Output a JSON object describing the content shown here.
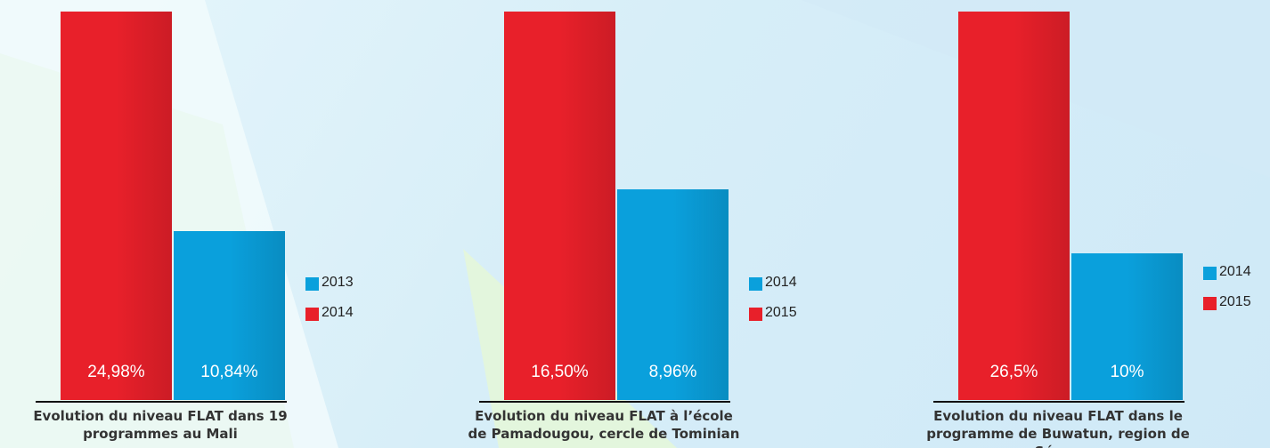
{
  "chart_data": [
    {
      "type": "bar",
      "title": "Evolution du niveau FLAT dans 19 programmes au Mali",
      "categories": [
        null
      ],
      "series": [
        {
          "name": "2013",
          "color": "#0aa0dc",
          "values": [
            10.84
          ],
          "value_labels": [
            "10,84%"
          ]
        },
        {
          "name": "2014",
          "color": "#e8202a",
          "values": [
            24.98
          ],
          "value_labels": [
            "24,98%"
          ]
        }
      ]
    },
    {
      "type": "bar",
      "title": "Evolution du niveau FLAT à l’école de Pamadougou, cercle de Tominian",
      "categories": [
        null
      ],
      "series": [
        {
          "name": "2014",
          "color": "#0aa0dc",
          "values": [
            8.96
          ],
          "value_labels": [
            "8,96%"
          ]
        },
        {
          "name": "2015",
          "color": "#e8202a",
          "values": [
            16.5
          ],
          "value_labels": [
            "16,50%"
          ]
        }
      ]
    },
    {
      "type": "bar",
      "title": "Evolution du niveau FLAT dans le programme de Buwatun, region de Ségou",
      "categories": [
        null
      ],
      "series": [
        {
          "name": "2014",
          "color": "#0aa0dc",
          "values": [
            10
          ],
          "value_labels": [
            "10%"
          ]
        },
        {
          "name": "2015",
          "color": "#e8202a",
          "values": [
            26.5
          ],
          "value_labels": [
            "26,5%"
          ]
        }
      ]
    }
  ]
}
